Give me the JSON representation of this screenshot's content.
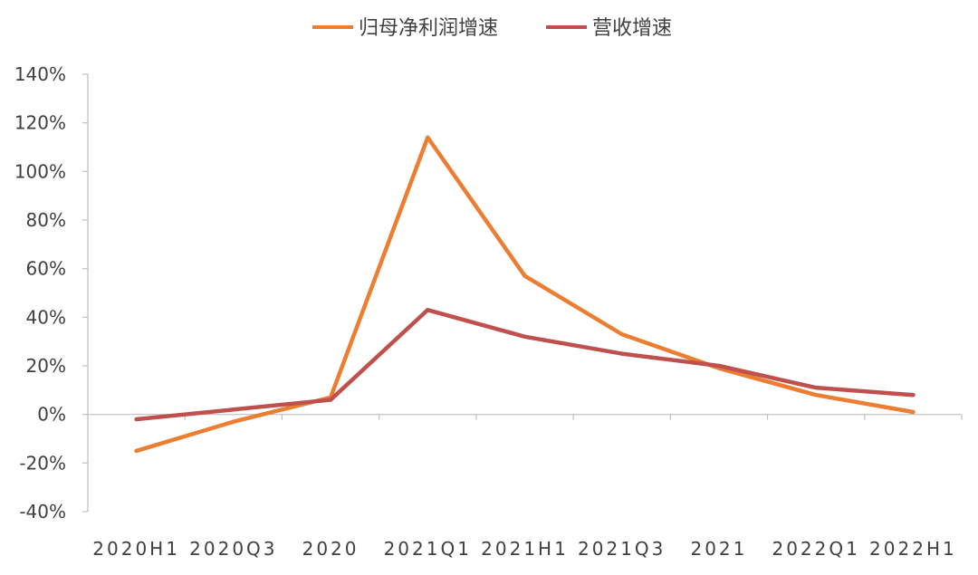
{
  "chart_data": {
    "type": "line",
    "categories": [
      "2020H1",
      "2020Q3",
      "2020",
      "2021Q1",
      "2021H1",
      "2021Q3",
      "2021",
      "2022Q1",
      "2022H1"
    ],
    "series": [
      {
        "name": "归母净利润增速",
        "color": "#ED7D31",
        "values": [
          -15,
          -3,
          7,
          114,
          57,
          33,
          19,
          8,
          1
        ]
      },
      {
        "name": "营收增速",
        "color": "#C0504D",
        "values": [
          -2,
          2,
          6,
          43,
          32,
          25,
          20,
          11,
          8
        ]
      }
    ],
    "yticks": [
      "140%",
      "120%",
      "100%",
      "80%",
      "60%",
      "40%",
      "20%",
      "0%",
      "-20%",
      "-40%"
    ],
    "ylim": [
      -40,
      140
    ],
    "ytick_step": 20,
    "legend_position": "top-center",
    "grid": false
  }
}
